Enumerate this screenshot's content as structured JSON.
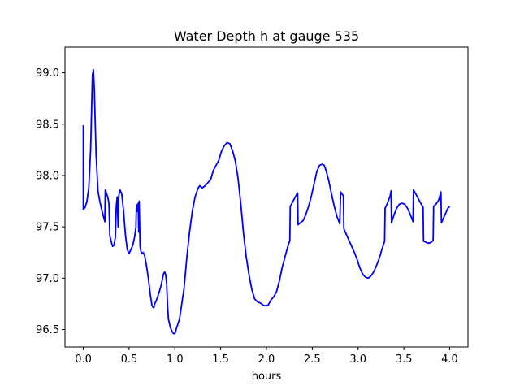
{
  "chart_data": {
    "type": "line",
    "title": "Water Depth h at gauge 535",
    "xlabel": "hours",
    "ylabel": "",
    "xlim": [
      -0.2,
      4.2
    ],
    "ylim": [
      96.33,
      99.25
    ],
    "grid": false,
    "x_ticks": [
      0.0,
      0.5,
      1.0,
      1.5,
      2.0,
      2.5,
      3.0,
      3.5,
      4.0
    ],
    "x_tick_labels": [
      "0.0",
      "0.5",
      "1.0",
      "1.5",
      "2.0",
      "2.5",
      "3.0",
      "3.5",
      "4.0"
    ],
    "y_ticks": [
      96.5,
      97.0,
      97.5,
      98.0,
      98.5,
      99.0
    ],
    "y_tick_labels": [
      "96.5",
      "97.0",
      "97.5",
      "98.0",
      "98.5",
      "99.0"
    ],
    "series": [
      {
        "color": "#0000ff",
        "points": [
          [
            0.0,
            98.49
          ],
          [
            0.0,
            97.67
          ],
          [
            0.02,
            97.69
          ],
          [
            0.04,
            97.75
          ],
          [
            0.06,
            97.88
          ],
          [
            0.08,
            98.25
          ],
          [
            0.1,
            98.98
          ],
          [
            0.11,
            99.03
          ],
          [
            0.12,
            98.85
          ],
          [
            0.14,
            98.2
          ],
          [
            0.16,
            97.85
          ],
          [
            0.18,
            97.75
          ],
          [
            0.2,
            97.67
          ],
          [
            0.22,
            97.6
          ],
          [
            0.235,
            97.55
          ],
          [
            0.24,
            97.86
          ],
          [
            0.27,
            97.78
          ],
          [
            0.28,
            97.73
          ],
          [
            0.29,
            97.41
          ],
          [
            0.31,
            97.34
          ],
          [
            0.32,
            97.31
          ],
          [
            0.335,
            97.32
          ],
          [
            0.35,
            97.4
          ],
          [
            0.355,
            97.55
          ],
          [
            0.36,
            97.7
          ],
          [
            0.37,
            97.79
          ],
          [
            0.38,
            97.5
          ],
          [
            0.385,
            97.79
          ],
          [
            0.4,
            97.86
          ],
          [
            0.42,
            97.82
          ],
          [
            0.44,
            97.65
          ],
          [
            0.46,
            97.42
          ],
          [
            0.48,
            97.28
          ],
          [
            0.5,
            97.24
          ],
          [
            0.52,
            97.28
          ],
          [
            0.54,
            97.32
          ],
          [
            0.56,
            97.4
          ],
          [
            0.575,
            97.5
          ],
          [
            0.58,
            97.72
          ],
          [
            0.59,
            97.65
          ],
          [
            0.6,
            97.73
          ],
          [
            0.605,
            97.45
          ],
          [
            0.61,
            97.75
          ],
          [
            0.62,
            97.31
          ],
          [
            0.63,
            97.26
          ],
          [
            0.64,
            97.24
          ],
          [
            0.655,
            97.25
          ],
          [
            0.67,
            97.22
          ],
          [
            0.69,
            97.12
          ],
          [
            0.71,
            97.0
          ],
          [
            0.73,
            96.85
          ],
          [
            0.75,
            96.73
          ],
          [
            0.77,
            96.71
          ],
          [
            0.775,
            96.74
          ],
          [
            0.79,
            96.77
          ],
          [
            0.8,
            96.79
          ],
          [
            0.82,
            96.84
          ],
          [
            0.84,
            96.9
          ],
          [
            0.85,
            96.93
          ],
          [
            0.87,
            97.02
          ],
          [
            0.88,
            97.05
          ],
          [
            0.89,
            97.06
          ],
          [
            0.9,
            97.03
          ],
          [
            0.91,
            96.95
          ],
          [
            0.92,
            96.73
          ],
          [
            0.93,
            96.6
          ],
          [
            0.95,
            96.52
          ],
          [
            0.97,
            96.48
          ],
          [
            0.985,
            96.46
          ],
          [
            1.0,
            96.46
          ],
          [
            1.02,
            96.52
          ],
          [
            1.05,
            96.6
          ],
          [
            1.08,
            96.78
          ],
          [
            1.1,
            96.9
          ],
          [
            1.13,
            97.2
          ],
          [
            1.16,
            97.45
          ],
          [
            1.19,
            97.65
          ],
          [
            1.22,
            97.79
          ],
          [
            1.25,
            97.87
          ],
          [
            1.27,
            97.9
          ],
          [
            1.3,
            97.88
          ],
          [
            1.33,
            97.9
          ],
          [
            1.36,
            97.93
          ],
          [
            1.39,
            97.96
          ],
          [
            1.42,
            98.05
          ],
          [
            1.45,
            98.1
          ],
          [
            1.48,
            98.15
          ],
          [
            1.51,
            98.24
          ],
          [
            1.54,
            98.29
          ],
          [
            1.57,
            98.32
          ],
          [
            1.6,
            98.31
          ],
          [
            1.63,
            98.24
          ],
          [
            1.66,
            98.14
          ],
          [
            1.69,
            97.97
          ],
          [
            1.72,
            97.72
          ],
          [
            1.75,
            97.43
          ],
          [
            1.78,
            97.2
          ],
          [
            1.81,
            97.03
          ],
          [
            1.84,
            96.89
          ],
          [
            1.87,
            96.8
          ],
          [
            1.9,
            96.77
          ],
          [
            1.93,
            96.76
          ],
          [
            1.96,
            96.74
          ],
          [
            1.99,
            96.73
          ],
          [
            2.02,
            96.74
          ],
          [
            2.05,
            96.79
          ],
          [
            2.08,
            96.82
          ],
          [
            2.11,
            96.87
          ],
          [
            2.14,
            96.97
          ],
          [
            2.17,
            97.1
          ],
          [
            2.2,
            97.2
          ],
          [
            2.23,
            97.3
          ],
          [
            2.255,
            97.37
          ],
          [
            2.26,
            97.7
          ],
          [
            2.29,
            97.75
          ],
          [
            2.32,
            97.8
          ],
          [
            2.34,
            97.83
          ],
          [
            2.345,
            97.52
          ],
          [
            2.37,
            97.54
          ],
          [
            2.4,
            97.56
          ],
          [
            2.43,
            97.62
          ],
          [
            2.46,
            97.7
          ],
          [
            2.49,
            97.8
          ],
          [
            2.52,
            97.92
          ],
          [
            2.55,
            98.04
          ],
          [
            2.58,
            98.1
          ],
          [
            2.61,
            98.11
          ],
          [
            2.63,
            98.1
          ],
          [
            2.65,
            98.05
          ],
          [
            2.68,
            97.95
          ],
          [
            2.71,
            97.82
          ],
          [
            2.74,
            97.7
          ],
          [
            2.77,
            97.6
          ],
          [
            2.8,
            97.53
          ],
          [
            2.81,
            97.84
          ],
          [
            2.84,
            97.8
          ],
          [
            2.845,
            97.48
          ],
          [
            2.87,
            97.43
          ],
          [
            2.9,
            97.37
          ],
          [
            2.93,
            97.31
          ],
          [
            2.96,
            97.25
          ],
          [
            2.99,
            97.18
          ],
          [
            3.02,
            97.1
          ],
          [
            3.05,
            97.04
          ],
          [
            3.08,
            97.01
          ],
          [
            3.11,
            97.0
          ],
          [
            3.14,
            97.02
          ],
          [
            3.17,
            97.06
          ],
          [
            3.2,
            97.12
          ],
          [
            3.23,
            97.19
          ],
          [
            3.26,
            97.28
          ],
          [
            3.29,
            97.36
          ],
          [
            3.295,
            97.68
          ],
          [
            3.32,
            97.73
          ],
          [
            3.35,
            97.8
          ],
          [
            3.36,
            97.85
          ],
          [
            3.365,
            97.54
          ],
          [
            3.39,
            97.61
          ],
          [
            3.42,
            97.68
          ],
          [
            3.45,
            97.72
          ],
          [
            3.48,
            97.73
          ],
          [
            3.51,
            97.72
          ],
          [
            3.54,
            97.68
          ],
          [
            3.57,
            97.62
          ],
          [
            3.6,
            97.55
          ],
          [
            3.605,
            97.86
          ],
          [
            3.63,
            97.82
          ],
          [
            3.66,
            97.77
          ],
          [
            3.69,
            97.72
          ],
          [
            3.71,
            97.69
          ],
          [
            3.715,
            97.36
          ],
          [
            3.74,
            97.35
          ],
          [
            3.77,
            97.34
          ],
          [
            3.8,
            97.35
          ],
          [
            3.82,
            97.37
          ],
          [
            3.825,
            97.7
          ],
          [
            3.85,
            97.72
          ],
          [
            3.88,
            97.76
          ],
          [
            3.905,
            97.84
          ],
          [
            3.91,
            97.54
          ],
          [
            3.93,
            97.58
          ],
          [
            3.96,
            97.64
          ],
          [
            3.98,
            97.68
          ],
          [
            4.0,
            97.7
          ]
        ]
      }
    ]
  }
}
